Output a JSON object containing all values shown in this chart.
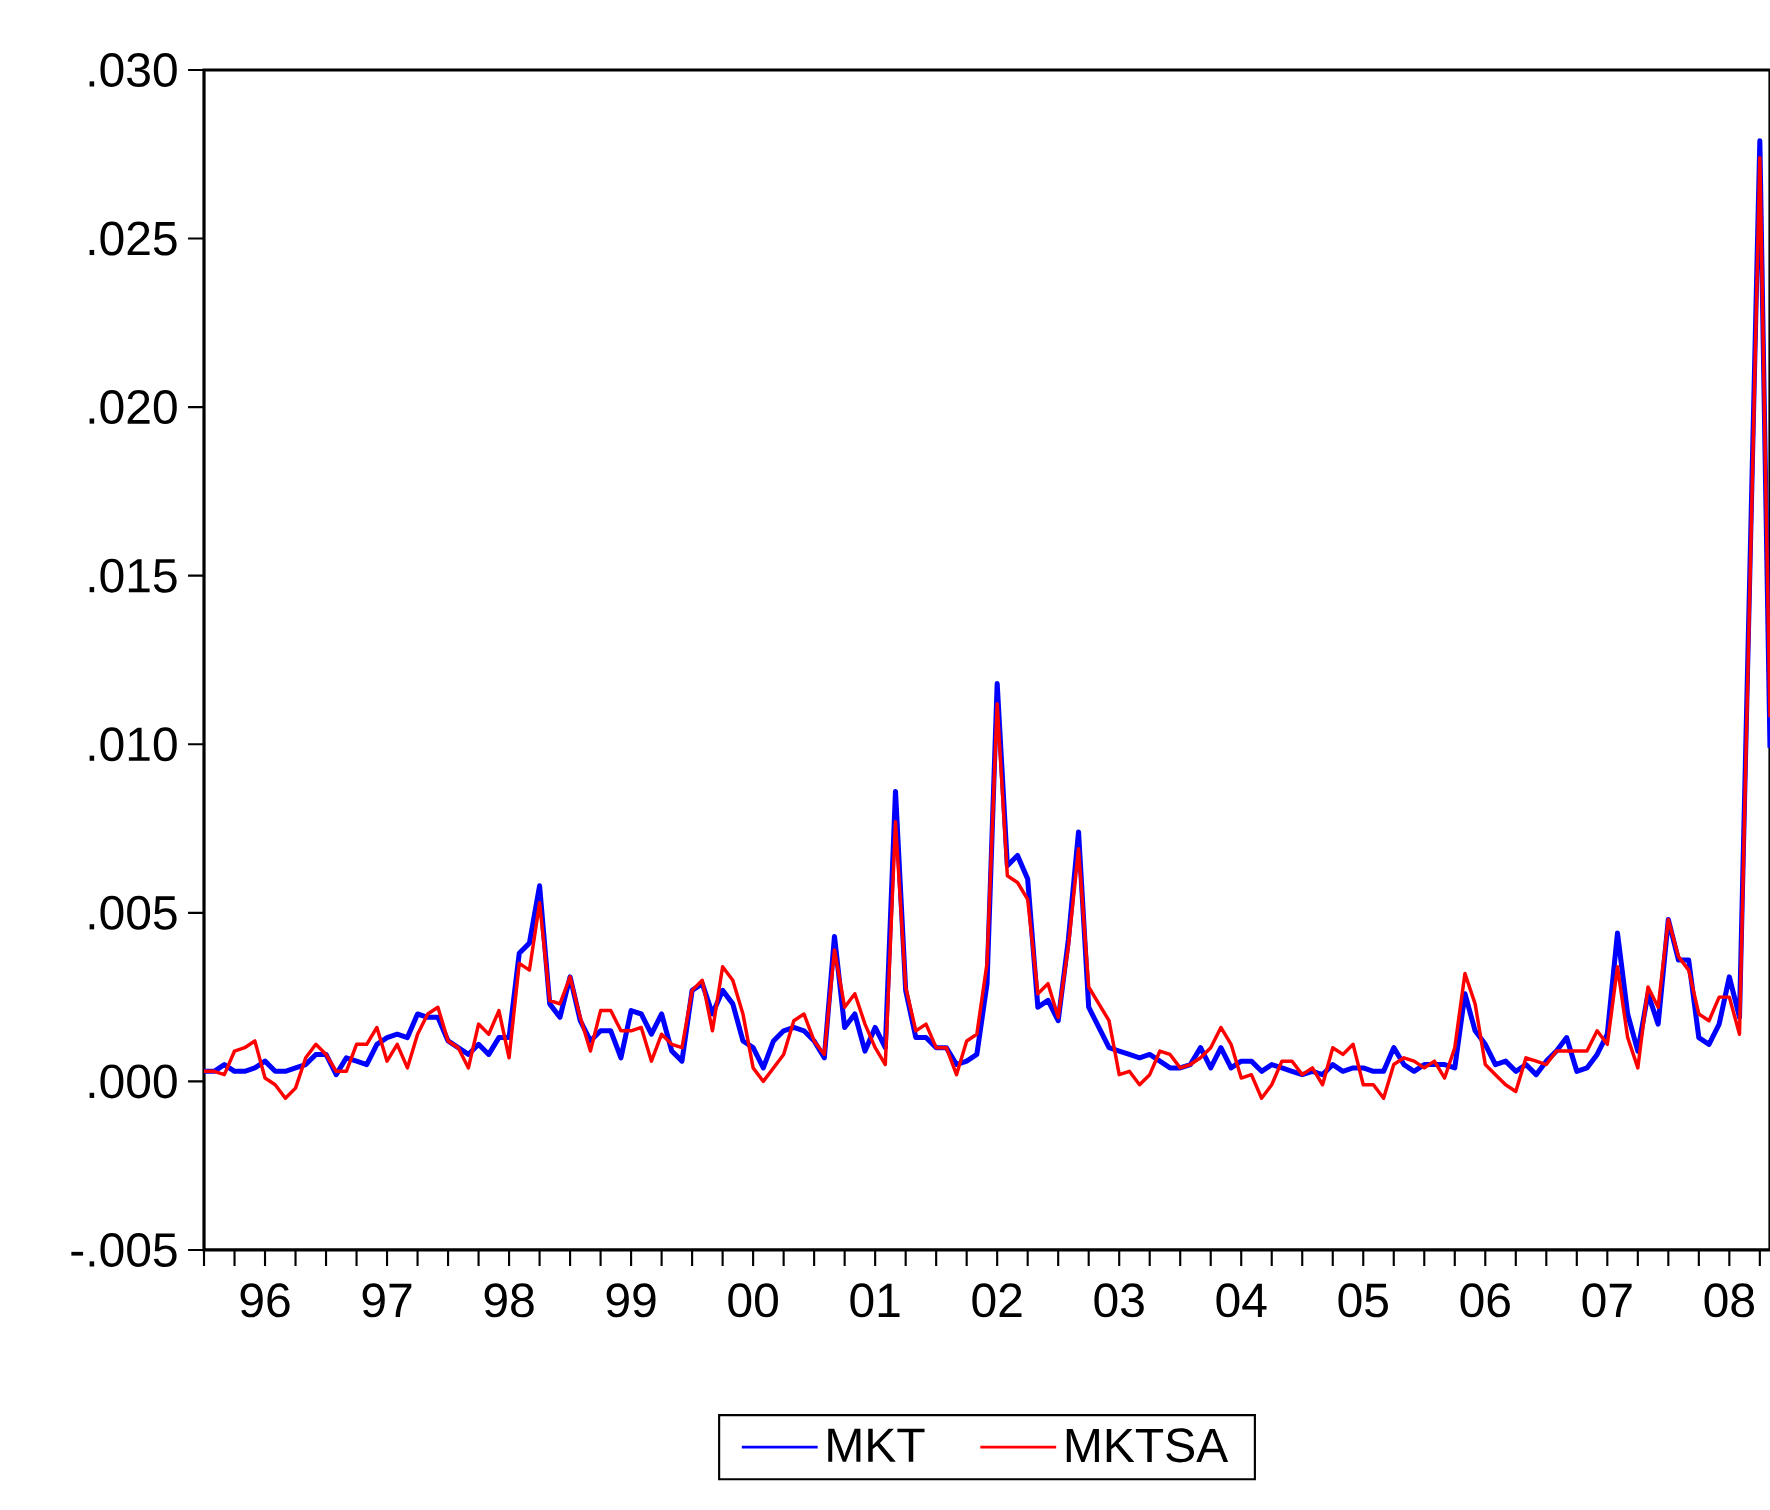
{
  "chart_data": {
    "type": "line",
    "x": [
      "1996-01",
      "1996-02",
      "1996-03",
      "1996-04",
      "1996-05",
      "1996-06",
      "1996-07",
      "1996-08",
      "1996-09",
      "1996-10",
      "1996-11",
      "1996-12",
      "1997-01",
      "1997-02",
      "1997-03",
      "1997-04",
      "1997-05",
      "1997-06",
      "1997-07",
      "1997-08",
      "1997-09",
      "1997-10",
      "1997-11",
      "1997-12",
      "1998-01",
      "1998-02",
      "1998-03",
      "1998-04",
      "1998-05",
      "1998-06",
      "1998-07",
      "1998-08",
      "1998-09",
      "1998-10",
      "1998-11",
      "1998-12",
      "1999-01",
      "1999-02",
      "1999-03",
      "1999-04",
      "1999-05",
      "1999-06",
      "1999-07",
      "1999-08",
      "1999-09",
      "1999-10",
      "1999-11",
      "1999-12",
      "2000-01",
      "2000-02",
      "2000-03",
      "2000-04",
      "2000-05",
      "2000-06",
      "2000-07",
      "2000-08",
      "2000-09",
      "2000-10",
      "2000-11",
      "2000-12",
      "2001-01",
      "2001-02",
      "2001-03",
      "2001-04",
      "2001-05",
      "2001-06",
      "2001-07",
      "2001-08",
      "2001-09",
      "2001-10",
      "2001-11",
      "2001-12",
      "2002-01",
      "2002-02",
      "2002-03",
      "2002-04",
      "2002-05",
      "2002-06",
      "2002-07",
      "2002-08",
      "2002-09",
      "2002-10",
      "2002-11",
      "2002-12",
      "2003-01",
      "2003-02",
      "2003-03",
      "2003-04",
      "2003-05",
      "2003-06",
      "2003-07",
      "2003-08",
      "2003-09",
      "2003-10",
      "2003-11",
      "2003-12",
      "2004-01",
      "2004-02",
      "2004-03",
      "2004-04",
      "2004-05",
      "2004-06",
      "2004-07",
      "2004-08",
      "2004-09",
      "2004-10",
      "2004-11",
      "2004-12",
      "2005-01",
      "2005-02",
      "2005-03",
      "2005-04",
      "2005-05",
      "2005-06",
      "2005-07",
      "2005-08",
      "2005-09",
      "2005-10",
      "2005-11",
      "2005-12",
      "2006-01",
      "2006-02",
      "2006-03",
      "2006-04",
      "2006-05",
      "2006-06",
      "2006-07",
      "2006-08",
      "2006-09",
      "2006-10",
      "2006-11",
      "2006-12",
      "2007-01",
      "2007-02",
      "2007-03",
      "2007-04",
      "2007-05",
      "2007-06",
      "2007-07",
      "2007-08",
      "2007-09",
      "2007-10",
      "2007-11",
      "2007-12",
      "2008-01",
      "2008-02",
      "2008-03",
      "2008-04",
      "2008-05",
      "2008-06",
      "2008-07",
      "2008-08",
      "2008-10",
      "2008-11"
    ],
    "series": [
      {
        "name": "MKT",
        "color": "#0000ff",
        "values": [
          0.0003,
          0.0003,
          0.0005,
          0.0003,
          0.0003,
          0.0004,
          0.0006,
          0.0003,
          0.0003,
          0.0004,
          0.0005,
          0.0008,
          0.0008,
          0.0002,
          0.0007,
          0.0006,
          0.0005,
          0.0011,
          0.0013,
          0.0014,
          0.0013,
          0.002,
          0.0019,
          0.0019,
          0.0012,
          0.001,
          0.0008,
          0.0011,
          0.0008,
          0.0013,
          0.0013,
          0.0038,
          0.0041,
          0.0058,
          0.0023,
          0.0019,
          0.0031,
          0.0018,
          0.0012,
          0.0015,
          0.0015,
          0.0007,
          0.0021,
          0.002,
          0.0014,
          0.002,
          0.0009,
          0.0006,
          0.0027,
          0.0029,
          0.002,
          0.0027,
          0.0023,
          0.0012,
          0.001,
          0.0004,
          0.0012,
          0.0015,
          0.0016,
          0.0015,
          0.0012,
          0.0007,
          0.0043,
          0.0016,
          0.002,
          0.0009,
          0.0016,
          0.001,
          0.0086,
          0.0027,
          0.0013,
          0.0013,
          0.001,
          0.001,
          0.0005,
          0.0006,
          0.0008,
          0.0029,
          0.0118,
          0.0064,
          0.0067,
          0.006,
          0.0022,
          0.0024,
          0.0018,
          0.0042,
          0.0074,
          0.0022,
          0.0016,
          0.001,
          0.0009,
          0.0008,
          0.0007,
          0.0008,
          0.0006,
          0.0004,
          0.0004,
          0.0005,
          0.001,
          0.0004,
          0.001,
          0.0004,
          0.0006,
          0.0006,
          0.0003,
          0.0005,
          0.0004,
          0.0003,
          0.0002,
          0.0003,
          0.0002,
          0.0005,
          0.0003,
          0.0004,
          0.0004,
          0.0003,
          0.0003,
          0.001,
          0.0005,
          0.0003,
          0.0005,
          0.0005,
          0.0005,
          0.0004,
          0.0026,
          0.0015,
          0.0011,
          0.0005,
          0.0006,
          0.0003,
          0.0005,
          0.0002,
          0.0006,
          0.0009,
          0.0013,
          0.0003,
          0.0004,
          0.0008,
          0.0014,
          0.0044,
          0.002,
          0.0009,
          0.0026,
          0.0017,
          0.0048,
          0.0036,
          0.0036,
          0.0013,
          0.0011,
          0.0017,
          0.0031,
          0.0019,
          0.0279,
          0.0099
        ]
      },
      {
        "name": "MKTSA",
        "color": "#ff0000",
        "values": [
          0.0003,
          0.0003,
          0.0002,
          0.0009,
          0.001,
          0.0012,
          0.0001,
          -0.0001,
          -0.0005,
          -0.0002,
          0.0007,
          0.0011,
          0.0008,
          0.0003,
          0.0003,
          0.0011,
          0.0011,
          0.0016,
          0.0006,
          0.0011,
          0.0004,
          0.0014,
          0.002,
          0.0022,
          0.0012,
          0.001,
          0.0004,
          0.0017,
          0.0014,
          0.0021,
          0.0007,
          0.0035,
          0.0033,
          0.0053,
          0.0024,
          0.0023,
          0.0031,
          0.0019,
          0.0009,
          0.0021,
          0.0021,
          0.0015,
          0.0015,
          0.0016,
          0.0006,
          0.0014,
          0.0011,
          0.001,
          0.0027,
          0.003,
          0.0015,
          0.0034,
          0.003,
          0.002,
          0.0004,
          0.0,
          0.0004,
          0.0008,
          0.0018,
          0.002,
          0.0012,
          0.0008,
          0.0039,
          0.0022,
          0.0026,
          0.0017,
          0.001,
          0.0005,
          0.0077,
          0.0028,
          0.0015,
          0.0017,
          0.001,
          0.001,
          0.0002,
          0.0012,
          0.0014,
          0.0035,
          0.0112,
          0.0061,
          0.0059,
          0.0054,
          0.0026,
          0.0029,
          0.0019,
          0.004,
          0.0069,
          0.0028,
          0.0023,
          0.0018,
          0.0002,
          0.0003,
          -0.0001,
          0.0002,
          0.0009,
          0.0008,
          0.0004,
          0.0005,
          0.0007,
          0.001,
          0.0016,
          0.0011,
          0.0001,
          0.0002,
          -0.0005,
          -0.0001,
          0.0006,
          0.0006,
          0.0002,
          0.0004,
          -0.0001,
          0.001,
          0.0008,
          0.0011,
          -0.0001,
          -0.0001,
          -0.0005,
          0.0005,
          0.0007,
          0.0006,
          0.0004,
          0.0006,
          0.0001,
          0.001,
          0.0032,
          0.0023,
          0.0005,
          0.0002,
          -0.0001,
          -0.0003,
          0.0007,
          0.0006,
          0.0005,
          0.0009,
          0.0009,
          0.0009,
          0.0009,
          0.0015,
          0.0011,
          0.0034,
          0.0013,
          0.0004,
          0.0028,
          0.0022,
          0.0048,
          0.0037,
          0.0033,
          0.002,
          0.0018,
          0.0025,
          0.0025,
          0.0014,
          0.0274,
          0.0108
        ]
      }
    ],
    "xlim": [
      "1996-01",
      "2008-11"
    ],
    "xticks": [
      {
        "value": "1996-01",
        "label": null
      },
      {
        "value": "1996-04",
        "label": null
      },
      {
        "value": "1996-07",
        "label": "96"
      },
      {
        "value": "1996-10",
        "label": null
      },
      {
        "value": "1997-01",
        "label": null
      },
      {
        "value": "1997-04",
        "label": null
      },
      {
        "value": "1997-07",
        "label": "97"
      },
      {
        "value": "1997-10",
        "label": null
      },
      {
        "value": "1998-01",
        "label": null
      },
      {
        "value": "1998-04",
        "label": null
      },
      {
        "value": "1998-07",
        "label": "98"
      },
      {
        "value": "1998-10",
        "label": null
      },
      {
        "value": "1999-01",
        "label": null
      },
      {
        "value": "1999-04",
        "label": null
      },
      {
        "value": "1999-07",
        "label": "99"
      },
      {
        "value": "1999-10",
        "label": null
      },
      {
        "value": "2000-01",
        "label": null
      },
      {
        "value": "2000-04",
        "label": null
      },
      {
        "value": "2000-07",
        "label": "00"
      },
      {
        "value": "2000-10",
        "label": null
      },
      {
        "value": "2001-01",
        "label": null
      },
      {
        "value": "2001-04",
        "label": null
      },
      {
        "value": "2001-07",
        "label": "01"
      },
      {
        "value": "2001-10",
        "label": null
      },
      {
        "value": "2002-01",
        "label": null
      },
      {
        "value": "2002-04",
        "label": null
      },
      {
        "value": "2002-07",
        "label": "02"
      },
      {
        "value": "2002-10",
        "label": null
      },
      {
        "value": "2003-01",
        "label": null
      },
      {
        "value": "2003-04",
        "label": null
      },
      {
        "value": "2003-07",
        "label": "03"
      },
      {
        "value": "2003-10",
        "label": null
      },
      {
        "value": "2004-01",
        "label": null
      },
      {
        "value": "2004-04",
        "label": null
      },
      {
        "value": "2004-07",
        "label": "04"
      },
      {
        "value": "2004-10",
        "label": null
      },
      {
        "value": "2005-01",
        "label": null
      },
      {
        "value": "2005-04",
        "label": null
      },
      {
        "value": "2005-07",
        "label": "05"
      },
      {
        "value": "2005-10",
        "label": null
      },
      {
        "value": "2006-01",
        "label": null
      },
      {
        "value": "2006-04",
        "label": null
      },
      {
        "value": "2006-07",
        "label": "06"
      },
      {
        "value": "2006-10",
        "label": null
      },
      {
        "value": "2007-01",
        "label": null
      },
      {
        "value": "2007-04",
        "label": null
      },
      {
        "value": "2007-07",
        "label": "07"
      },
      {
        "value": "2007-10",
        "label": null
      },
      {
        "value": "2008-01",
        "label": null
      },
      {
        "value": "2008-04",
        "label": null
      },
      {
        "value": "2008-07",
        "label": "08"
      },
      {
        "value": "2008-10",
        "label": null
      }
    ],
    "ylim": [
      -0.005,
      0.03
    ],
    "yticks": [
      {
        "value": -0.005,
        "label": "-.005"
      },
      {
        "value": 0.0,
        "label": ".000"
      },
      {
        "value": 0.005,
        "label": ".005"
      },
      {
        "value": 0.01,
        "label": ".010"
      },
      {
        "value": 0.015,
        "label": ".015"
      },
      {
        "value": 0.02,
        "label": ".020"
      },
      {
        "value": 0.025,
        "label": ".025"
      },
      {
        "value": 0.03,
        "label": ".030"
      }
    ],
    "legend": "bottom"
  }
}
